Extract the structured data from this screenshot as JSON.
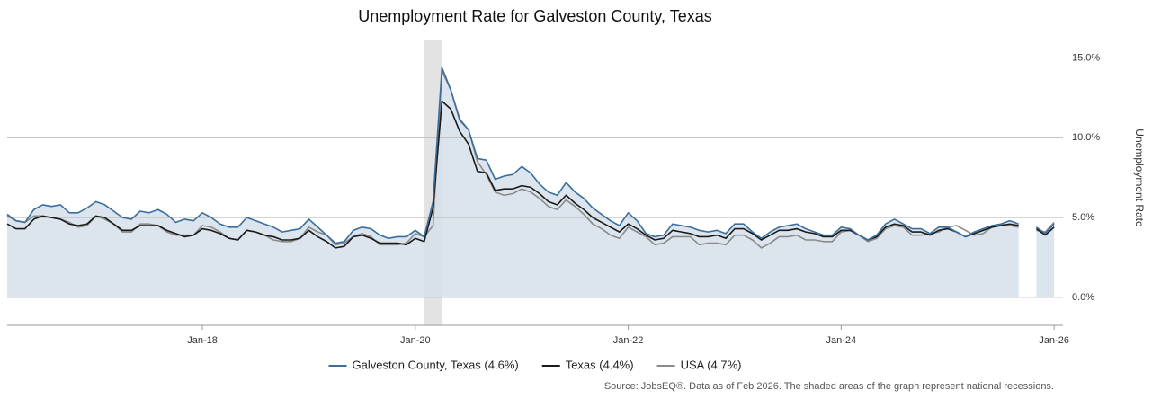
{
  "chart_data": {
    "type": "line",
    "title": "Unemployment Rate for Galveston County, Texas",
    "y_axis_label": "Unemployment Rate",
    "source": "Source: JobsEQ®. Data as of Feb 2026. The shaded areas of the graph represent national recessions.",
    "x": [
      "2016-03",
      "2016-04",
      "2016-05",
      "2016-06",
      "2016-07",
      "2016-08",
      "2016-09",
      "2016-10",
      "2016-11",
      "2016-12",
      "2017-01",
      "2017-02",
      "2017-03",
      "2017-04",
      "2017-05",
      "2017-06",
      "2017-07",
      "2017-08",
      "2017-09",
      "2017-10",
      "2017-11",
      "2017-12",
      "2018-01",
      "2018-02",
      "2018-03",
      "2018-04",
      "2018-05",
      "2018-06",
      "2018-07",
      "2018-08",
      "2018-09",
      "2018-10",
      "2018-11",
      "2018-12",
      "2019-01",
      "2019-02",
      "2019-03",
      "2019-04",
      "2019-05",
      "2019-06",
      "2019-07",
      "2019-08",
      "2019-09",
      "2019-10",
      "2019-11",
      "2019-12",
      "2020-01",
      "2020-02",
      "2020-03",
      "2020-04",
      "2020-05",
      "2020-06",
      "2020-07",
      "2020-08",
      "2020-09",
      "2020-10",
      "2020-11",
      "2020-12",
      "2021-01",
      "2021-02",
      "2021-03",
      "2021-04",
      "2021-05",
      "2021-06",
      "2021-07",
      "2021-08",
      "2021-09",
      "2021-10",
      "2021-11",
      "2021-12",
      "2022-01",
      "2022-02",
      "2022-03",
      "2022-04",
      "2022-05",
      "2022-06",
      "2022-07",
      "2022-08",
      "2022-09",
      "2022-10",
      "2022-11",
      "2022-12",
      "2023-01",
      "2023-02",
      "2023-03",
      "2023-04",
      "2023-05",
      "2023-06",
      "2023-07",
      "2023-08",
      "2023-09",
      "2023-10",
      "2023-11",
      "2023-12",
      "2024-01",
      "2024-02",
      "2024-03",
      "2024-04",
      "2024-05",
      "2024-06",
      "2024-07",
      "2024-08",
      "2024-09",
      "2024-10",
      "2024-11",
      "2024-12",
      "2025-01",
      "2025-02",
      "2025-03",
      "2025-04",
      "2025-05",
      "2025-06",
      "2025-07",
      "2025-08",
      "2025-09",
      "2025-10",
      "2025-11",
      "2025-12",
      "2026-01"
    ],
    "series": [
      {
        "name": "Galveston County, Texas (4.6%)",
        "color": "#3a6e9f",
        "fill": "#d6e1ea",
        "values": [
          5.2,
          4.8,
          4.7,
          5.5,
          5.8,
          5.7,
          5.8,
          5.3,
          5.3,
          5.6,
          6.0,
          5.8,
          5.4,
          5.0,
          4.9,
          5.4,
          5.3,
          5.5,
          5.2,
          4.7,
          4.9,
          4.8,
          5.3,
          5.0,
          4.6,
          4.4,
          4.4,
          5.0,
          4.8,
          4.6,
          4.4,
          4.1,
          4.2,
          4.3,
          4.9,
          4.4,
          3.9,
          3.4,
          3.5,
          4.2,
          4.4,
          4.3,
          3.9,
          3.7,
          3.8,
          3.8,
          4.2,
          3.8,
          6.0,
          14.4,
          13.0,
          11.1,
          10.5,
          8.7,
          8.6,
          7.4,
          7.6,
          7.7,
          8.2,
          7.8,
          7.1,
          6.6,
          6.4,
          7.2,
          6.6,
          6.2,
          5.6,
          5.2,
          4.8,
          4.5,
          5.3,
          4.8,
          4.0,
          3.8,
          3.9,
          4.6,
          4.5,
          4.4,
          4.2,
          4.1,
          4.2,
          4.0,
          4.6,
          4.6,
          4.1,
          3.7,
          4.1,
          4.4,
          4.5,
          4.6,
          4.3,
          4.1,
          3.9,
          3.9,
          4.4,
          4.3,
          3.9,
          3.6,
          3.9,
          4.6,
          4.9,
          4.6,
          4.3,
          4.3,
          4.0,
          4.4,
          4.4,
          4.1,
          3.8,
          4.1,
          4.3,
          4.5,
          4.6,
          4.8,
          4.6,
          null,
          4.4,
          4.0,
          4.6
        ]
      },
      {
        "name": "Texas (4.4%)",
        "color": "#1a1a1a",
        "values": [
          4.6,
          4.3,
          4.3,
          4.9,
          5.1,
          5.0,
          4.9,
          4.6,
          4.5,
          4.6,
          5.1,
          5.0,
          4.6,
          4.2,
          4.2,
          4.5,
          4.5,
          4.5,
          4.2,
          4.0,
          3.8,
          3.9,
          4.3,
          4.2,
          4.0,
          3.7,
          3.6,
          4.2,
          4.1,
          3.9,
          3.8,
          3.6,
          3.6,
          3.7,
          4.2,
          3.8,
          3.5,
          3.1,
          3.2,
          3.8,
          3.9,
          3.7,
          3.4,
          3.4,
          3.4,
          3.3,
          3.7,
          3.5,
          5.6,
          12.3,
          11.8,
          10.4,
          9.6,
          7.9,
          7.8,
          6.7,
          6.8,
          6.8,
          7.0,
          6.9,
          6.5,
          6.0,
          5.8,
          6.4,
          5.9,
          5.5,
          5.0,
          4.7,
          4.4,
          4.1,
          4.6,
          4.3,
          3.9,
          3.6,
          3.7,
          4.2,
          4.1,
          4.0,
          3.8,
          3.8,
          3.9,
          3.7,
          4.3,
          4.3,
          4.0,
          3.6,
          3.9,
          4.2,
          4.2,
          4.3,
          4.1,
          4.0,
          3.8,
          3.8,
          4.2,
          4.2,
          3.9,
          3.6,
          3.8,
          4.4,
          4.6,
          4.5,
          4.1,
          4.1,
          3.9,
          4.2,
          4.3,
          4.1,
          3.8,
          4.0,
          4.2,
          4.4,
          4.5,
          4.6,
          4.5,
          null,
          4.3,
          3.9,
          4.4
        ]
      },
      {
        "name": "USA (4.7%)",
        "color": "#8a8a8a",
        "values": [
          5.1,
          4.8,
          4.7,
          5.1,
          5.1,
          5.0,
          4.9,
          4.7,
          4.4,
          4.5,
          5.1,
          4.9,
          4.6,
          4.1,
          4.1,
          4.6,
          4.6,
          4.5,
          4.1,
          3.9,
          3.9,
          3.9,
          4.5,
          4.4,
          4.1,
          3.7,
          3.6,
          4.2,
          4.1,
          3.9,
          3.6,
          3.5,
          3.5,
          3.7,
          4.4,
          4.1,
          3.9,
          3.3,
          3.4,
          3.8,
          4.0,
          3.8,
          3.3,
          3.3,
          3.3,
          3.4,
          4.0,
          3.8,
          4.5,
          14.2,
          13.0,
          11.2,
          10.5,
          8.5,
          7.7,
          6.6,
          6.4,
          6.5,
          6.8,
          6.6,
          6.2,
          5.7,
          5.5,
          6.1,
          5.7,
          5.2,
          4.6,
          4.3,
          3.9,
          3.7,
          4.4,
          4.1,
          3.8,
          3.3,
          3.4,
          3.8,
          3.8,
          3.8,
          3.3,
          3.4,
          3.4,
          3.3,
          3.9,
          3.9,
          3.6,
          3.1,
          3.4,
          3.8,
          3.8,
          3.9,
          3.6,
          3.6,
          3.5,
          3.5,
          4.1,
          4.2,
          3.9,
          3.5,
          3.7,
          4.3,
          4.5,
          4.4,
          3.9,
          3.9,
          4.0,
          4.1,
          4.4,
          4.5,
          4.2,
          3.9,
          4.0,
          4.4,
          4.6,
          4.5,
          4.4,
          null,
          4.2,
          4.1,
          4.7
        ]
      }
    ],
    "recessions": [
      {
        "start": "2020-02",
        "end": "2020-04"
      }
    ],
    "xlim": [
      "2016-03",
      "2026-02"
    ],
    "xticks": [
      {
        "value": "2018-01",
        "label": "Jan-18"
      },
      {
        "value": "2020-01",
        "label": "Jan-20"
      },
      {
        "value": "2022-01",
        "label": "Jan-22"
      },
      {
        "value": "2024-01",
        "label": "Jan-24"
      },
      {
        "value": "2026-01",
        "label": "Jan-26"
      }
    ],
    "ylim": [
      -1.75,
      16.1
    ],
    "yticks": [
      {
        "value": 0,
        "label": "0.0%"
      },
      {
        "value": 5,
        "label": "5.0%"
      },
      {
        "value": 10,
        "label": "10.0%"
      },
      {
        "value": 15,
        "label": "15.0%"
      }
    ],
    "grid": true
  }
}
